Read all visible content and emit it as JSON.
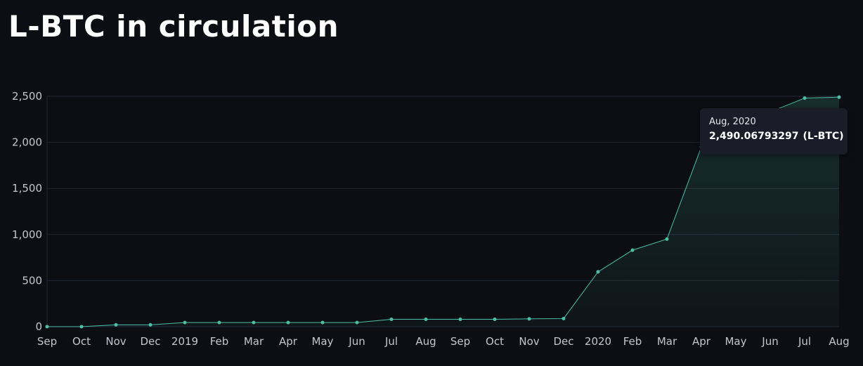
{
  "page": {
    "title": "L-BTC in circulation"
  },
  "colors": {
    "background": "#0c0e14",
    "line": "#4cbfa6",
    "grid": "#232733",
    "tooltip_bg": "#1a1d28"
  },
  "tooltip": {
    "date": "Aug, 2020",
    "value": "2,490.06793297",
    "unit": "(L-BTC)"
  },
  "chart_data": {
    "type": "area",
    "title": "L-BTC in circulation",
    "x": [
      "Sep",
      "Oct",
      "Nov",
      "Dec",
      "2019",
      "Feb",
      "Mar",
      "Apr",
      "May",
      "Jun",
      "Jul",
      "Aug",
      "Sep",
      "Oct",
      "Nov",
      "Dec",
      "2020",
      "Feb",
      "Mar",
      "Apr",
      "May",
      "Jun",
      "Jul",
      "Aug"
    ],
    "series": [
      {
        "values": [
          0,
          0,
          20,
          20,
          45,
          45,
          45,
          45,
          45,
          45,
          80,
          80,
          80,
          80,
          85,
          88,
          595,
          830,
          950,
          1950,
          2140,
          2330,
          2480,
          2490.06793297
        ]
      }
    ],
    "yticks": [
      0,
      500,
      1000,
      1500,
      2000,
      2500
    ],
    "ytick_labels": [
      "0",
      "500",
      "1,000",
      "1,500",
      "2,000",
      "2,500"
    ],
    "ylim": [
      0,
      2500
    ],
    "grid": true,
    "xlabel": "",
    "ylabel": ""
  }
}
